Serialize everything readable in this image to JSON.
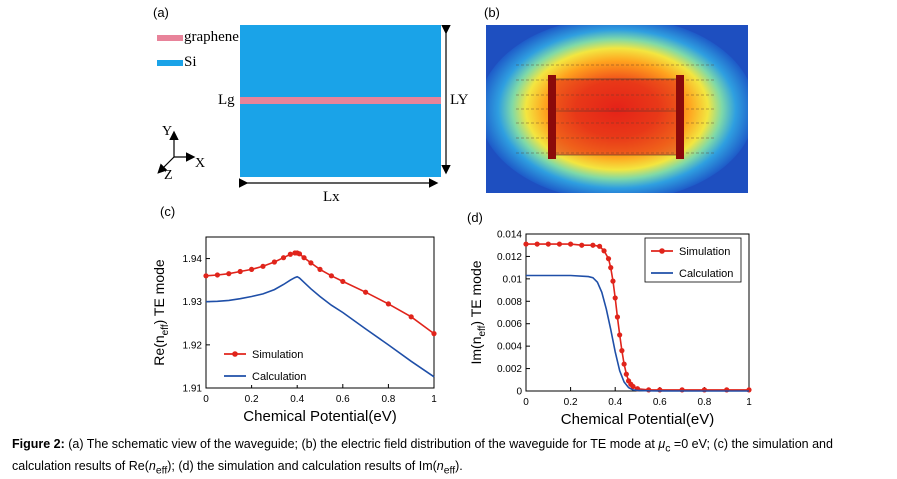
{
  "panel_a": {
    "label": "(a)",
    "legend": [
      {
        "name": "graphene",
        "color": "#E8839A"
      },
      {
        "name": "Si",
        "color": "#1AA3E8"
      }
    ],
    "lg_label": "Lg",
    "ly_label": "LY",
    "lx_label": "Lx",
    "axes": {
      "x": "X",
      "y": "Y",
      "z": "Z"
    },
    "colors": {
      "si": "#1AA3E8",
      "graphene": "#E8839A"
    }
  },
  "panel_b": {
    "label": "(b)"
  },
  "panel_c": {
    "label": "(c)"
  },
  "panel_d": {
    "label": "(d)"
  },
  "caption": {
    "bold": "Figure 2:",
    "text_1": " (a) The schematic view of the waveguide; (b) the electric field distribution of the waveguide for TE mode at ",
    "mu": "μ",
    "mu_sub": "c",
    "text_2": " =0 eV; (c) the simulation and calculation results of Re(",
    "n1": "n",
    "n1_sub": "eff",
    "text_3": "); (d) the simulation and calculation results of Im(",
    "n2": "n",
    "n2_sub": "eff",
    "text_4": ")."
  },
  "chart_data": [
    {
      "id": "c",
      "type": "line",
      "title": "",
      "xlabel": "Chemical Potential(eV)",
      "ylabel": "Re(n_eff) TE mode",
      "ylabel_parts": {
        "pre": "Re(n",
        "sub": "eff",
        "post": ") TE mode"
      },
      "xlim": [
        0,
        1
      ],
      "ylim": [
        1.91,
        1.945
      ],
      "x_ticks": [
        0,
        0.2,
        0.4,
        0.6,
        0.8,
        1
      ],
      "x_tick_labels": [
        "0",
        "0.2",
        "0.4",
        "0.6",
        "0.8",
        "1"
      ],
      "y_ticks": [
        1.91,
        1.92,
        1.93,
        1.94
      ],
      "y_tick_labels": [
        "1.91",
        "1.92",
        "1.93",
        "1.94"
      ],
      "legend_position": "bottom-left",
      "series": [
        {
          "name": "Simulation",
          "color": "#E0241B",
          "marker": "circle",
          "x": [
            0,
            0.05,
            0.1,
            0.15,
            0.2,
            0.25,
            0.3,
            0.34,
            0.37,
            0.39,
            0.4,
            0.41,
            0.43,
            0.46,
            0.5,
            0.55,
            0.6,
            0.7,
            0.8,
            0.9,
            1.0
          ],
          "y": [
            1.936,
            1.9362,
            1.9365,
            1.937,
            1.9375,
            1.9382,
            1.9392,
            1.9402,
            1.941,
            1.9413,
            1.9413,
            1.9411,
            1.9402,
            1.939,
            1.9375,
            1.936,
            1.9347,
            1.9322,
            1.9295,
            1.9265,
            1.9226
          ]
        },
        {
          "name": "Calculation",
          "color": "#1F4FA8",
          "marker": "none",
          "x": [
            0,
            0.05,
            0.1,
            0.15,
            0.2,
            0.25,
            0.3,
            0.34,
            0.37,
            0.39,
            0.4,
            0.41,
            0.43,
            0.46,
            0.5,
            0.55,
            0.6,
            0.7,
            0.8,
            0.9,
            1.0
          ],
          "y": [
            1.93,
            1.9301,
            1.9303,
            1.9307,
            1.9312,
            1.9318,
            1.9328,
            1.934,
            1.935,
            1.9356,
            1.9358,
            1.9355,
            1.9345,
            1.933,
            1.9312,
            1.9292,
            1.9275,
            1.9237,
            1.92,
            1.9162,
            1.9126
          ]
        }
      ]
    },
    {
      "id": "d",
      "type": "line",
      "title": "",
      "xlabel": "Chemical Potential(eV)",
      "ylabel": "Im(n_eff) TE mode",
      "ylabel_parts": {
        "pre": "Im(n",
        "sub": "eff",
        "post": ") TE mode"
      },
      "xlim": [
        0,
        1
      ],
      "ylim": [
        0,
        0.014
      ],
      "x_ticks": [
        0,
        0.2,
        0.4,
        0.6,
        0.8,
        1
      ],
      "x_tick_labels": [
        "0",
        "0.2",
        "0.4",
        "0.6",
        "0.8",
        "1"
      ],
      "y_ticks": [
        0,
        0.002,
        0.004,
        0.006,
        0.008,
        0.01,
        0.012,
        0.014
      ],
      "y_tick_labels": [
        "0",
        "0.002",
        "0.004",
        "0.006",
        "0.008",
        "0.01",
        "0.012",
        "0.014"
      ],
      "legend_position": "top-right",
      "series": [
        {
          "name": "Simulation",
          "color": "#E0241B",
          "marker": "circle",
          "x": [
            0,
            0.05,
            0.1,
            0.15,
            0.2,
            0.25,
            0.3,
            0.33,
            0.35,
            0.37,
            0.38,
            0.39,
            0.4,
            0.41,
            0.42,
            0.43,
            0.44,
            0.45,
            0.46,
            0.47,
            0.48,
            0.5,
            0.55,
            0.6,
            0.7,
            0.8,
            0.9,
            1.0
          ],
          "y": [
            0.0131,
            0.0131,
            0.0131,
            0.0131,
            0.0131,
            0.013,
            0.013,
            0.0129,
            0.0125,
            0.0118,
            0.011,
            0.0098,
            0.0083,
            0.0066,
            0.005,
            0.0036,
            0.0024,
            0.0015,
            0.0009,
            0.0006,
            0.0004,
            0.0002,
            0.0001,
            0.0001,
            0.0001,
            0.0001,
            0.0001,
            0.0001
          ]
        },
        {
          "name": "Calculation",
          "color": "#1F4FA8",
          "marker": "none",
          "x": [
            0,
            0.1,
            0.2,
            0.28,
            0.3,
            0.32,
            0.34,
            0.36,
            0.38,
            0.4,
            0.42,
            0.44,
            0.46,
            0.48,
            0.5,
            0.55,
            0.6,
            0.8,
            1.0
          ],
          "y": [
            0.0103,
            0.0103,
            0.0103,
            0.0102,
            0.0101,
            0.0097,
            0.0088,
            0.0073,
            0.0055,
            0.0035,
            0.0018,
            0.0008,
            0.0003,
            0.0001,
            5e-05,
            2e-05,
            1e-05,
            0,
            0
          ]
        }
      ]
    }
  ]
}
